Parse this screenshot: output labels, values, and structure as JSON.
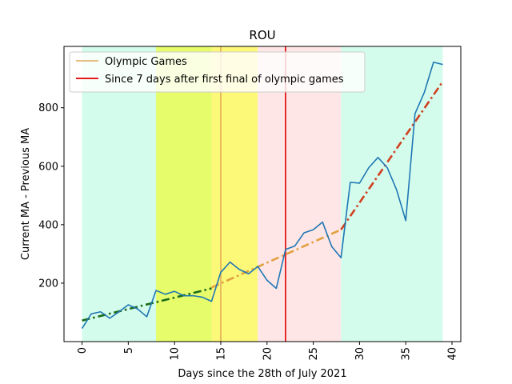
{
  "chart_data": {
    "type": "line",
    "title": "ROU",
    "xlabel": "Days since the 28th of July 2021",
    "ylabel": "Current MA - Previous MA",
    "xlim": [
      -1.95,
      40.95
    ],
    "ylim": [
      0,
      1010
    ],
    "xticks": [
      0,
      5,
      10,
      15,
      20,
      25,
      30,
      35,
      40
    ],
    "yticks": [
      200,
      400,
      600,
      800
    ],
    "x_tick_rotation": 90,
    "grid": false,
    "legend_position": "upper left",
    "legend": [
      {
        "label": "Olympic Games",
        "color": "#e0a858",
        "style": "solid"
      },
      {
        "label": "Since 7 days after first final of olympic games",
        "color": "#e41a1c",
        "style": "solid"
      }
    ],
    "shaded_regions": [
      {
        "x0": 0,
        "x1": 8,
        "color": "#d4fcec"
      },
      {
        "x0": 8,
        "x1": 14,
        "color": "#e6fc6a"
      },
      {
        "x0": 14,
        "x1": 19,
        "color": "#fcf878"
      },
      {
        "x0": 19,
        "x1": 28,
        "color": "#fee6e6"
      },
      {
        "x0": 28,
        "x1": 39,
        "color": "#d4fcec"
      }
    ],
    "vertical_lines": [
      {
        "x": 15,
        "color": "#e0a858",
        "width": 1.5
      },
      {
        "x": 22,
        "color": "#e41a1c",
        "width": 1.8
      }
    ],
    "series": [
      {
        "color": "#1f77b4",
        "x": [
          0,
          1,
          2,
          3,
          4,
          5,
          6,
          7,
          8,
          9,
          10,
          11,
          12,
          13,
          14,
          15,
          16,
          17,
          18,
          19,
          20,
          21,
          22,
          23,
          24,
          25,
          26,
          27,
          28,
          29,
          30,
          31,
          32,
          33,
          34,
          35,
          36,
          37,
          38,
          39
        ],
        "values": [
          45,
          95,
          102,
          80,
          102,
          126,
          112,
          85,
          175,
          162,
          172,
          157,
          157,
          152,
          138,
          237,
          272,
          247,
          232,
          257,
          210,
          182,
          315,
          327,
          372,
          383,
          409,
          325,
          287,
          545,
          542,
          595,
          630,
          595,
          520,
          414,
          780,
          852,
          956,
          948
        ]
      }
    ],
    "trend_lines": [
      {
        "color": "#1a6b1a",
        "style": "dashdot",
        "x": [
          0,
          14
        ],
        "values": [
          72,
          182
        ]
      },
      {
        "color": "#e0a040",
        "style": "dashdot",
        "x": [
          14,
          28
        ],
        "values": [
          185,
          383
        ]
      },
      {
        "color": "#d04020",
        "style": "dashdot",
        "x": [
          28,
          39
        ],
        "values": [
          383,
          890
        ]
      }
    ]
  }
}
